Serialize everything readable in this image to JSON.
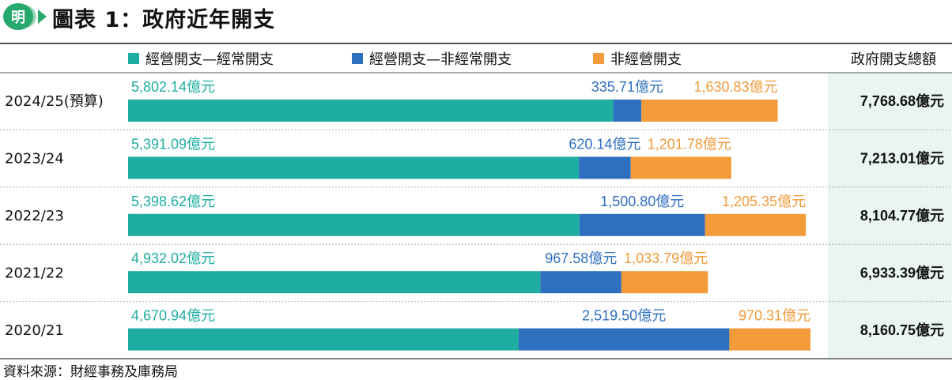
{
  "header": {
    "logo_text": "明",
    "title": "圖表 1：政府近年開支"
  },
  "source": "資料來源：財經事務及庫務局",
  "colors": {
    "recurrent": "#1fada2",
    "non_recurrent": "#2f6fbf",
    "non_operating": "#f39a3a",
    "total_bg": "#e9f4f3",
    "rule": "#555555",
    "row_divider": "#b0b0b0"
  },
  "chart_data": {
    "type": "bar",
    "orientation": "horizontal",
    "stacked": true,
    "title": "圖表 1：政府近年開支",
    "categories": [
      "2024/25(預算)",
      "2023/24",
      "2022/23",
      "2021/22",
      "2020/21"
    ],
    "series": [
      {
        "name": "經營開支—經常開支",
        "color": "#1fada2",
        "values": [
          5802.14,
          5391.09,
          5398.62,
          4932.02,
          4670.94
        ],
        "labels": [
          "5,802.14億元",
          "5,391.09億元",
          "5,398.62億元",
          "4,932.02億元",
          "4,670.94億元"
        ]
      },
      {
        "name": "經營開支—非經常開支",
        "color": "#2f6fbf",
        "values": [
          335.71,
          620.14,
          1500.8,
          967.58,
          2519.5
        ],
        "labels": [
          "335.71億元",
          "620.14億元",
          "1,500.80億元",
          "967.58億元",
          "2,519.50億元"
        ]
      },
      {
        "name": "非經營開支",
        "color": "#f39a3a",
        "values": [
          1630.83,
          1201.78,
          1205.35,
          1033.79,
          970.31
        ],
        "labels": [
          "1,630.83億元",
          "1,201.78億元",
          "1,205.35億元",
          "1,033.79億元",
          "970.31億元"
        ]
      }
    ],
    "totals_header": "政府開支總額",
    "totals": [
      7768.68,
      7213.01,
      8104.77,
      6933.39,
      8160.75
    ],
    "total_labels": [
      "7,768.68億元",
      "7,213.01億元",
      "8,104.77億元",
      "6,933.39億元",
      "8,160.75億元"
    ],
    "legend_position": "top",
    "grid": false,
    "xlim": [
      0,
      8160.75
    ]
  }
}
